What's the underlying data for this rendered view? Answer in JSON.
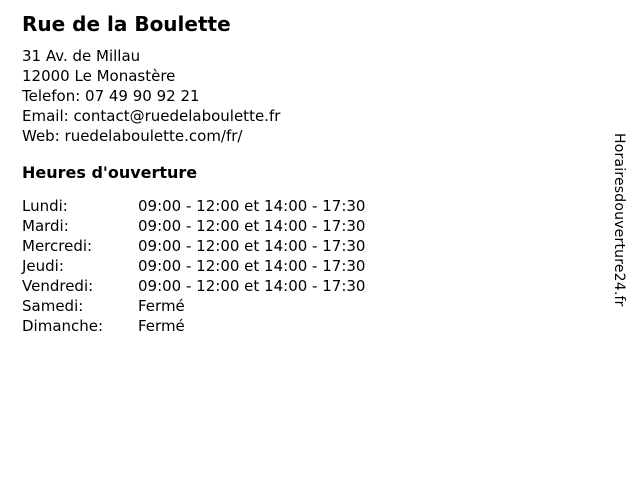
{
  "page": {
    "title": "Rue de la Boulette",
    "contact": {
      "address_line1": "31 Av. de Millau",
      "address_line2": "12000 Le Monastère",
      "phone": "Telefon: 07 49 90 92 21",
      "email": "Email: contact@ruedelaboulette.fr",
      "web": "Web: ruedelaboulette.com/fr/"
    },
    "hours": {
      "heading": "Heures d'ouverture",
      "rows": [
        {
          "day": "Lundi:",
          "time": "09:00 - 12:00 et 14:00 - 17:30"
        },
        {
          "day": "Mardi:",
          "time": "09:00 - 12:00 et 14:00 - 17:30"
        },
        {
          "day": "Mercredi:",
          "time": "09:00 - 12:00 et 14:00 - 17:30"
        },
        {
          "day": "Jeudi:",
          "time": "09:00 - 12:00 et 14:00 - 17:30"
        },
        {
          "day": "Vendredi:",
          "time": "09:00 - 12:00 et 14:00 - 17:30"
        },
        {
          "day": "Samedi:",
          "time": "Fermé"
        },
        {
          "day": "Dimanche:",
          "time": "Fermé"
        }
      ]
    },
    "watermark": "Horairesdouverture24.fr"
  },
  "colors": {
    "text": "#000000",
    "background": "#ffffff"
  }
}
